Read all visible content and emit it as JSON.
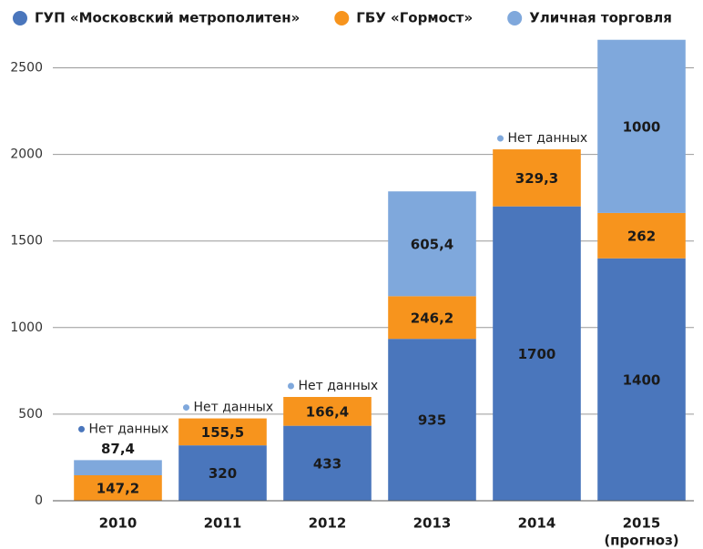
{
  "chart_data": {
    "type": "stacked_bar",
    "categories": [
      "2010",
      "2011",
      "2012",
      "2013",
      "2014",
      "2015"
    ],
    "subcategories": [
      null,
      null,
      null,
      null,
      null,
      "(прогноз)"
    ],
    "series": [
      {
        "name": "ГУП «Московский метрополитен»",
        "color": "#4a76bc",
        "label_color": "#ffffff",
        "values": [
          null,
          320,
          433,
          935,
          1700,
          1400
        ],
        "value_labels": [
          null,
          "320",
          "433",
          "935",
          "1700",
          "1400"
        ]
      },
      {
        "name": "ГБУ «Гормост»",
        "color": "#f7941d",
        "label_color": "#1a1a1a",
        "values": [
          147.2,
          155.5,
          166.4,
          246.2,
          329.3,
          262
        ],
        "value_labels": [
          "147,2",
          "155,5",
          "166,4",
          "246,2",
          "329,3",
          "262"
        ]
      },
      {
        "name": "Уличная торговля",
        "color": "#7fa8dc",
        "label_color": "#1a1a1a",
        "values": [
          87.4,
          null,
          null,
          605.4,
          null,
          1000
        ],
        "value_labels": [
          "87,4",
          null,
          null,
          "605,4",
          null,
          "1000"
        ]
      }
    ],
    "no_data_label": "Нет данных",
    "ylim": [
      0,
      2650
    ],
    "yticks": [
      0,
      500,
      1000,
      1500,
      2000,
      2500
    ],
    "grid": true
  }
}
